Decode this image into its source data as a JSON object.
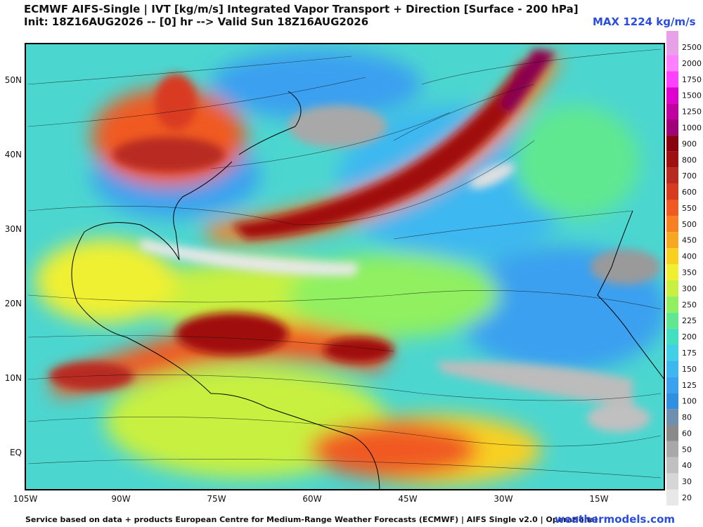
{
  "header": {
    "title": "ECMWF AIFS-Single | IVT [kg/m/s] Integrated Vapor Transport + Direction [Surface - 200 hPa]",
    "subtitle": "Init: 18Z16AUG2026 -- [0] hr --> Valid Sun 18Z16AUG2026",
    "max_label": "MAX 1224 kg/m/s"
  },
  "map": {
    "lat_labels": [
      "50N",
      "40N",
      "30N",
      "20N",
      "10N",
      "EQ"
    ],
    "lon_labels": [
      "105W",
      "90W",
      "75W",
      "60W",
      "45W",
      "30W",
      "15W"
    ]
  },
  "colorbar": {
    "levels": [
      {
        "label": "2500",
        "color": "#e8a0e8"
      },
      {
        "label": "2000",
        "color": "#ff80ff"
      },
      {
        "label": "1750",
        "color": "#ff40ff"
      },
      {
        "label": "1500",
        "color": "#e000d0"
      },
      {
        "label": "1250",
        "color": "#c000a0"
      },
      {
        "label": "1000",
        "color": "#a00078"
      },
      {
        "label": "900",
        "color": "#8a0010"
      },
      {
        "label": "800",
        "color": "#a01010"
      },
      {
        "label": "700",
        "color": "#b82a20"
      },
      {
        "label": "600",
        "color": "#d83a20"
      },
      {
        "label": "550",
        "color": "#f05a20"
      },
      {
        "label": "500",
        "color": "#f88020"
      },
      {
        "label": "450",
        "color": "#f8a820"
      },
      {
        "label": "400",
        "color": "#f8d020"
      },
      {
        "label": "350",
        "color": "#f0f030"
      },
      {
        "label": "300",
        "color": "#c8f040"
      },
      {
        "label": "250",
        "color": "#90f060"
      },
      {
        "label": "225",
        "color": "#60e890"
      },
      {
        "label": "200",
        "color": "#40e0c0"
      },
      {
        "label": "175",
        "color": "#40d0e8"
      },
      {
        "label": "150",
        "color": "#3cb8f0"
      },
      {
        "label": "125",
        "color": "#3aa0f0"
      },
      {
        "label": "100",
        "color": "#2f8fe0"
      },
      {
        "label": "80",
        "color": "#6e8fb0"
      },
      {
        "label": "60",
        "color": "#8a8a8a"
      },
      {
        "label": "50",
        "color": "#a8a8a8"
      },
      {
        "label": "40",
        "color": "#c0c0c0"
      },
      {
        "label": "30",
        "color": "#d6d6d6"
      },
      {
        "label": "20",
        "color": "#e8e8e8"
      }
    ]
  },
  "footer": {
    "credit": "Service based on data + products European Centre for Medium-Range Weather Forecasts (ECMWF) | AIFS Single v2.0 | Operational",
    "brand": "weathermodels.com"
  }
}
